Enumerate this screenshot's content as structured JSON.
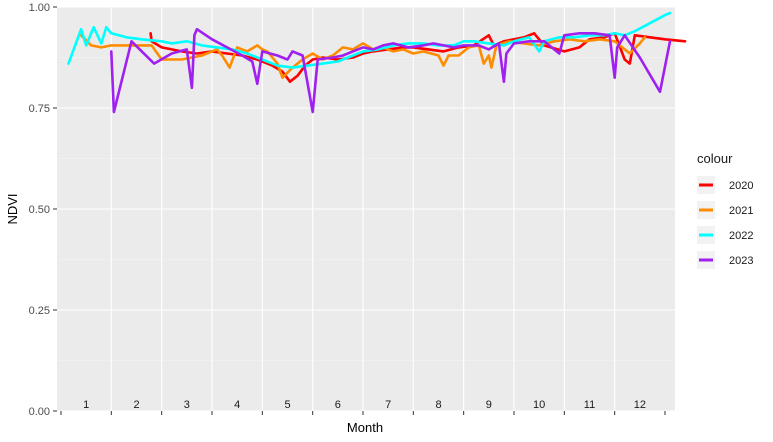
{
  "chart_data": {
    "type": "line",
    "xlabel": "Month",
    "ylabel": "NDVI",
    "ylim": [
      0,
      1
    ],
    "y_ticks": [
      {
        "value": 0,
        "label": "0.00"
      },
      {
        "value": 0.25,
        "label": "0.25"
      },
      {
        "value": 0.5,
        "label": "0.50"
      },
      {
        "value": 0.75,
        "label": "0.75"
      },
      {
        "value": 1,
        "label": "1.00"
      }
    ],
    "y_minor_ticks": [
      0.125,
      0.375,
      0.625,
      0.875
    ],
    "x_month_labels": [
      "1",
      "2",
      "3",
      "4",
      "5",
      "6",
      "7",
      "8",
      "9",
      "10",
      "11",
      "12"
    ],
    "xlim": [
      0,
      12
    ],
    "grid": true,
    "legend": {
      "title": "colour",
      "position": "right"
    },
    "series": [
      {
        "name": "2020",
        "color": "#FF0000",
        "points": [
          [
            1.78,
            0.935
          ],
          [
            1.8,
            0.915
          ],
          [
            2.0,
            0.9
          ],
          [
            2.2,
            0.895
          ],
          [
            2.4,
            0.89
          ],
          [
            2.7,
            0.885
          ],
          [
            3.0,
            0.89
          ],
          [
            3.3,
            0.885
          ],
          [
            3.6,
            0.88
          ],
          [
            3.9,
            0.87
          ],
          [
            4.2,
            0.855
          ],
          [
            4.4,
            0.84
          ],
          [
            4.55,
            0.815
          ],
          [
            4.7,
            0.83
          ],
          [
            4.85,
            0.855
          ],
          [
            5.0,
            0.87
          ],
          [
            5.2,
            0.875
          ],
          [
            5.5,
            0.87
          ],
          [
            5.8,
            0.875
          ],
          [
            6.0,
            0.885
          ],
          [
            6.2,
            0.89
          ],
          [
            6.5,
            0.895
          ],
          [
            6.8,
            0.9
          ],
          [
            7.0,
            0.9
          ],
          [
            7.3,
            0.895
          ],
          [
            7.6,
            0.89
          ],
          [
            7.9,
            0.9
          ],
          [
            8.2,
            0.905
          ],
          [
            8.5,
            0.93
          ],
          [
            8.6,
            0.905
          ],
          [
            8.8,
            0.915
          ],
          [
            9.0,
            0.92
          ],
          [
            9.2,
            0.925
          ],
          [
            9.4,
            0.935
          ],
          [
            9.6,
            0.905
          ],
          [
            10.0,
            0.89
          ],
          [
            10.3,
            0.9
          ],
          [
            10.5,
            0.92
          ],
          [
            10.8,
            0.925
          ],
          [
            11.0,
            0.935
          ],
          [
            11.2,
            0.87
          ],
          [
            11.3,
            0.86
          ],
          [
            11.4,
            0.93
          ],
          [
            11.7,
            0.925
          ],
          [
            12.0,
            0.92
          ],
          [
            12.4,
            0.915
          ]
        ]
      },
      {
        "name": "2021",
        "color": "#FF8C00",
        "points": [
          [
            0.4,
            0.93
          ],
          [
            0.6,
            0.905
          ],
          [
            0.8,
            0.9
          ],
          [
            1.0,
            0.905
          ],
          [
            1.4,
            0.905
          ],
          [
            1.8,
            0.905
          ],
          [
            2.0,
            0.87
          ],
          [
            2.4,
            0.87
          ],
          [
            2.8,
            0.88
          ],
          [
            3.1,
            0.895
          ],
          [
            3.2,
            0.88
          ],
          [
            3.35,
            0.85
          ],
          [
            3.5,
            0.9
          ],
          [
            3.7,
            0.89
          ],
          [
            3.9,
            0.905
          ],
          [
            4.0,
            0.895
          ],
          [
            4.1,
            0.89
          ],
          [
            4.3,
            0.86
          ],
          [
            4.4,
            0.825
          ],
          [
            4.6,
            0.85
          ],
          [
            4.8,
            0.87
          ],
          [
            5.0,
            0.885
          ],
          [
            5.2,
            0.87
          ],
          [
            5.4,
            0.88
          ],
          [
            5.6,
            0.9
          ],
          [
            5.8,
            0.895
          ],
          [
            6.0,
            0.91
          ],
          [
            6.2,
            0.895
          ],
          [
            6.4,
            0.9
          ],
          [
            6.6,
            0.89
          ],
          [
            6.8,
            0.895
          ],
          [
            7.0,
            0.885
          ],
          [
            7.2,
            0.89
          ],
          [
            7.5,
            0.88
          ],
          [
            7.6,
            0.855
          ],
          [
            7.7,
            0.88
          ],
          [
            7.9,
            0.88
          ],
          [
            8.1,
            0.9
          ],
          [
            8.3,
            0.905
          ],
          [
            8.4,
            0.86
          ],
          [
            8.5,
            0.88
          ],
          [
            8.55,
            0.85
          ],
          [
            8.65,
            0.905
          ],
          [
            8.9,
            0.915
          ],
          [
            9.2,
            0.91
          ],
          [
            9.5,
            0.905
          ],
          [
            9.8,
            0.915
          ],
          [
            10.1,
            0.92
          ],
          [
            10.4,
            0.915
          ],
          [
            10.7,
            0.92
          ],
          [
            11.0,
            0.915
          ],
          [
            11.3,
            0.885
          ],
          [
            11.5,
            0.91
          ],
          [
            11.6,
            0.925
          ]
        ]
      },
      {
        "name": "2022",
        "color": "#00FFFF",
        "points": [
          [
            0.15,
            0.86
          ],
          [
            0.4,
            0.945
          ],
          [
            0.5,
            0.905
          ],
          [
            0.65,
            0.95
          ],
          [
            0.8,
            0.91
          ],
          [
            0.9,
            0.95
          ],
          [
            1.0,
            0.935
          ],
          [
            1.3,
            0.925
          ],
          [
            1.6,
            0.92
          ],
          [
            2.0,
            0.915
          ],
          [
            2.2,
            0.91
          ],
          [
            2.5,
            0.915
          ],
          [
            2.8,
            0.905
          ],
          [
            3.1,
            0.9
          ],
          [
            3.4,
            0.895
          ],
          [
            3.7,
            0.885
          ],
          [
            4.0,
            0.87
          ],
          [
            4.3,
            0.855
          ],
          [
            4.6,
            0.85
          ],
          [
            4.9,
            0.855
          ],
          [
            5.2,
            0.86
          ],
          [
            5.5,
            0.865
          ],
          [
            5.8,
            0.88
          ],
          [
            6.0,
            0.89
          ],
          [
            6.3,
            0.895
          ],
          [
            6.6,
            0.905
          ],
          [
            6.9,
            0.91
          ],
          [
            7.2,
            0.91
          ],
          [
            7.5,
            0.905
          ],
          [
            7.8,
            0.905
          ],
          [
            8.0,
            0.915
          ],
          [
            8.2,
            0.915
          ],
          [
            8.5,
            0.91
          ],
          [
            8.8,
            0.905
          ],
          [
            9.0,
            0.915
          ],
          [
            9.3,
            0.925
          ],
          [
            9.5,
            0.89
          ],
          [
            9.6,
            0.915
          ],
          [
            9.9,
            0.925
          ],
          [
            10.2,
            0.925
          ],
          [
            10.5,
            0.93
          ],
          [
            10.8,
            0.93
          ],
          [
            11.0,
            0.935
          ],
          [
            11.2,
            0.93
          ],
          [
            11.4,
            0.94
          ],
          [
            11.7,
            0.96
          ],
          [
            12.0,
            0.98
          ],
          [
            12.1,
            0.985
          ]
        ]
      },
      {
        "name": "2023",
        "color": "#A020F0",
        "points": [
          [
            1.0,
            0.89
          ],
          [
            1.05,
            0.74
          ],
          [
            1.4,
            0.915
          ],
          [
            1.85,
            0.86
          ],
          [
            2.2,
            0.885
          ],
          [
            2.5,
            0.895
          ],
          [
            2.6,
            0.8
          ],
          [
            2.65,
            0.93
          ],
          [
            2.7,
            0.945
          ],
          [
            3.0,
            0.92
          ],
          [
            3.3,
            0.9
          ],
          [
            3.6,
            0.88
          ],
          [
            3.8,
            0.865
          ],
          [
            3.9,
            0.81
          ],
          [
            4.0,
            0.89
          ],
          [
            4.3,
            0.88
          ],
          [
            4.5,
            0.87
          ],
          [
            4.6,
            0.89
          ],
          [
            4.8,
            0.88
          ],
          [
            5.0,
            0.74
          ],
          [
            5.1,
            0.87
          ],
          [
            5.4,
            0.875
          ],
          [
            5.6,
            0.88
          ],
          [
            5.8,
            0.89
          ],
          [
            6.0,
            0.9
          ],
          [
            6.2,
            0.895
          ],
          [
            6.4,
            0.905
          ],
          [
            6.6,
            0.91
          ],
          [
            6.9,
            0.9
          ],
          [
            7.2,
            0.905
          ],
          [
            7.4,
            0.91
          ],
          [
            7.6,
            0.905
          ],
          [
            7.8,
            0.9
          ],
          [
            8.0,
            0.905
          ],
          [
            8.3,
            0.905
          ],
          [
            8.5,
            0.895
          ],
          [
            8.7,
            0.91
          ],
          [
            8.8,
            0.815
          ],
          [
            8.85,
            0.885
          ],
          [
            9.0,
            0.91
          ],
          [
            9.3,
            0.915
          ],
          [
            9.6,
            0.915
          ],
          [
            9.9,
            0.885
          ],
          [
            10.0,
            0.93
          ],
          [
            10.3,
            0.935
          ],
          [
            10.6,
            0.935
          ],
          [
            10.9,
            0.93
          ],
          [
            11.0,
            0.825
          ],
          [
            11.05,
            0.9
          ],
          [
            11.2,
            0.93
          ],
          [
            11.5,
            0.875
          ],
          [
            11.9,
            0.79
          ],
          [
            12.1,
            0.915
          ]
        ]
      }
    ]
  }
}
